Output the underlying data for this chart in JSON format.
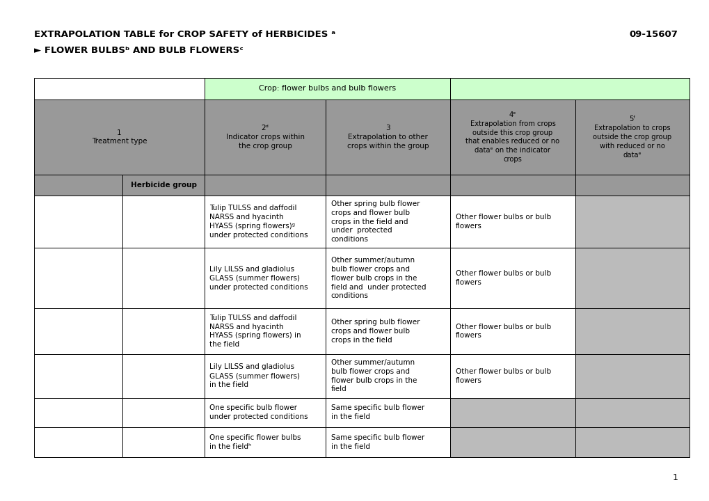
{
  "title_left": "EXTRAPOLATION TABLE for CROP SAFETY of HERBICIDES ᵃ",
  "title_left2": "► FLOWER BULBSᵇ AND BULB FLOWERSᶜ",
  "title_right": "09-15607",
  "page_number": "1",
  "header_green_text": "Crop: flower bulbs and bulb flowers",
  "col_headers": [
    "1\nTreatment type",
    "2ᵈ\nIndicator crops within\nthe crop group",
    "3\nExtrapolation to other\ncrops within the group",
    "4ᵉ\nExtrapolation from crops\noutside this crop group\nthat enables reduced or no\ndataᵉ on the indicator\ncrops",
    "5ᶠ\nExtrapolation to crops\noutside the crop group\nwith reduced or no\ndataᵉ"
  ],
  "herbicide_group_label": "Herbicide group",
  "rows": [
    {
      "col2": "Tulip TULSS and daffodil\nNARSS and hyacinth\nHYASS (spring flowers)ᵍ\nunder protected conditions",
      "col3": "Other spring bulb flower\ncrops and flower bulb\ncrops in the field and\nunder  protected\nconditions",
      "col4": "Other flower bulbs or bulb\nflowers",
      "col5": ""
    },
    {
      "col2": "Lily LILSS and gladiolus\nGLASS (summer flowers)\nunder protected conditions",
      "col3": "Other summer/autumn\nbulb flower crops and\nflower bulb crops in the\nfield and  under protected\nconditions",
      "col4": "Other flower bulbs or bulb\nflowers",
      "col5": ""
    },
    {
      "col2": "Tulip TULSS and daffodil\nNARSS and hyacinth\nHYASS (spring flowers) in\nthe field",
      "col3": "Other spring bulb flower\ncrops and flower bulb\ncrops in the field",
      "col4": "Other flower bulbs or bulb\nflowers",
      "col5": ""
    },
    {
      "col2": "Lily LILSS and gladiolus\nGLASS (summer flowers)\nin the field",
      "col3": "Other summer/autumn\nbulb flower crops and\nflower bulb crops in the\nfield",
      "col4": "Other flower bulbs or bulb\nflowers",
      "col5": ""
    },
    {
      "col2": "One specific bulb flower\nunder protected conditions",
      "col3": "Same specific bulb flower\nin the field",
      "col4": "",
      "col5": ""
    },
    {
      "col2": "One specific flower bulbs\nin the fieldʰ",
      "col3": "Same specific bulb flower\nin the field",
      "col4": "",
      "col5": ""
    }
  ],
  "colors": {
    "background": "#ffffff",
    "green_header": "#ccffcc",
    "gray_header": "#999999",
    "data_gray": "#bbbbbb",
    "white_cell": "#ffffff",
    "border": "#000000"
  },
  "figsize": [
    10.2,
    7.2
  ]
}
